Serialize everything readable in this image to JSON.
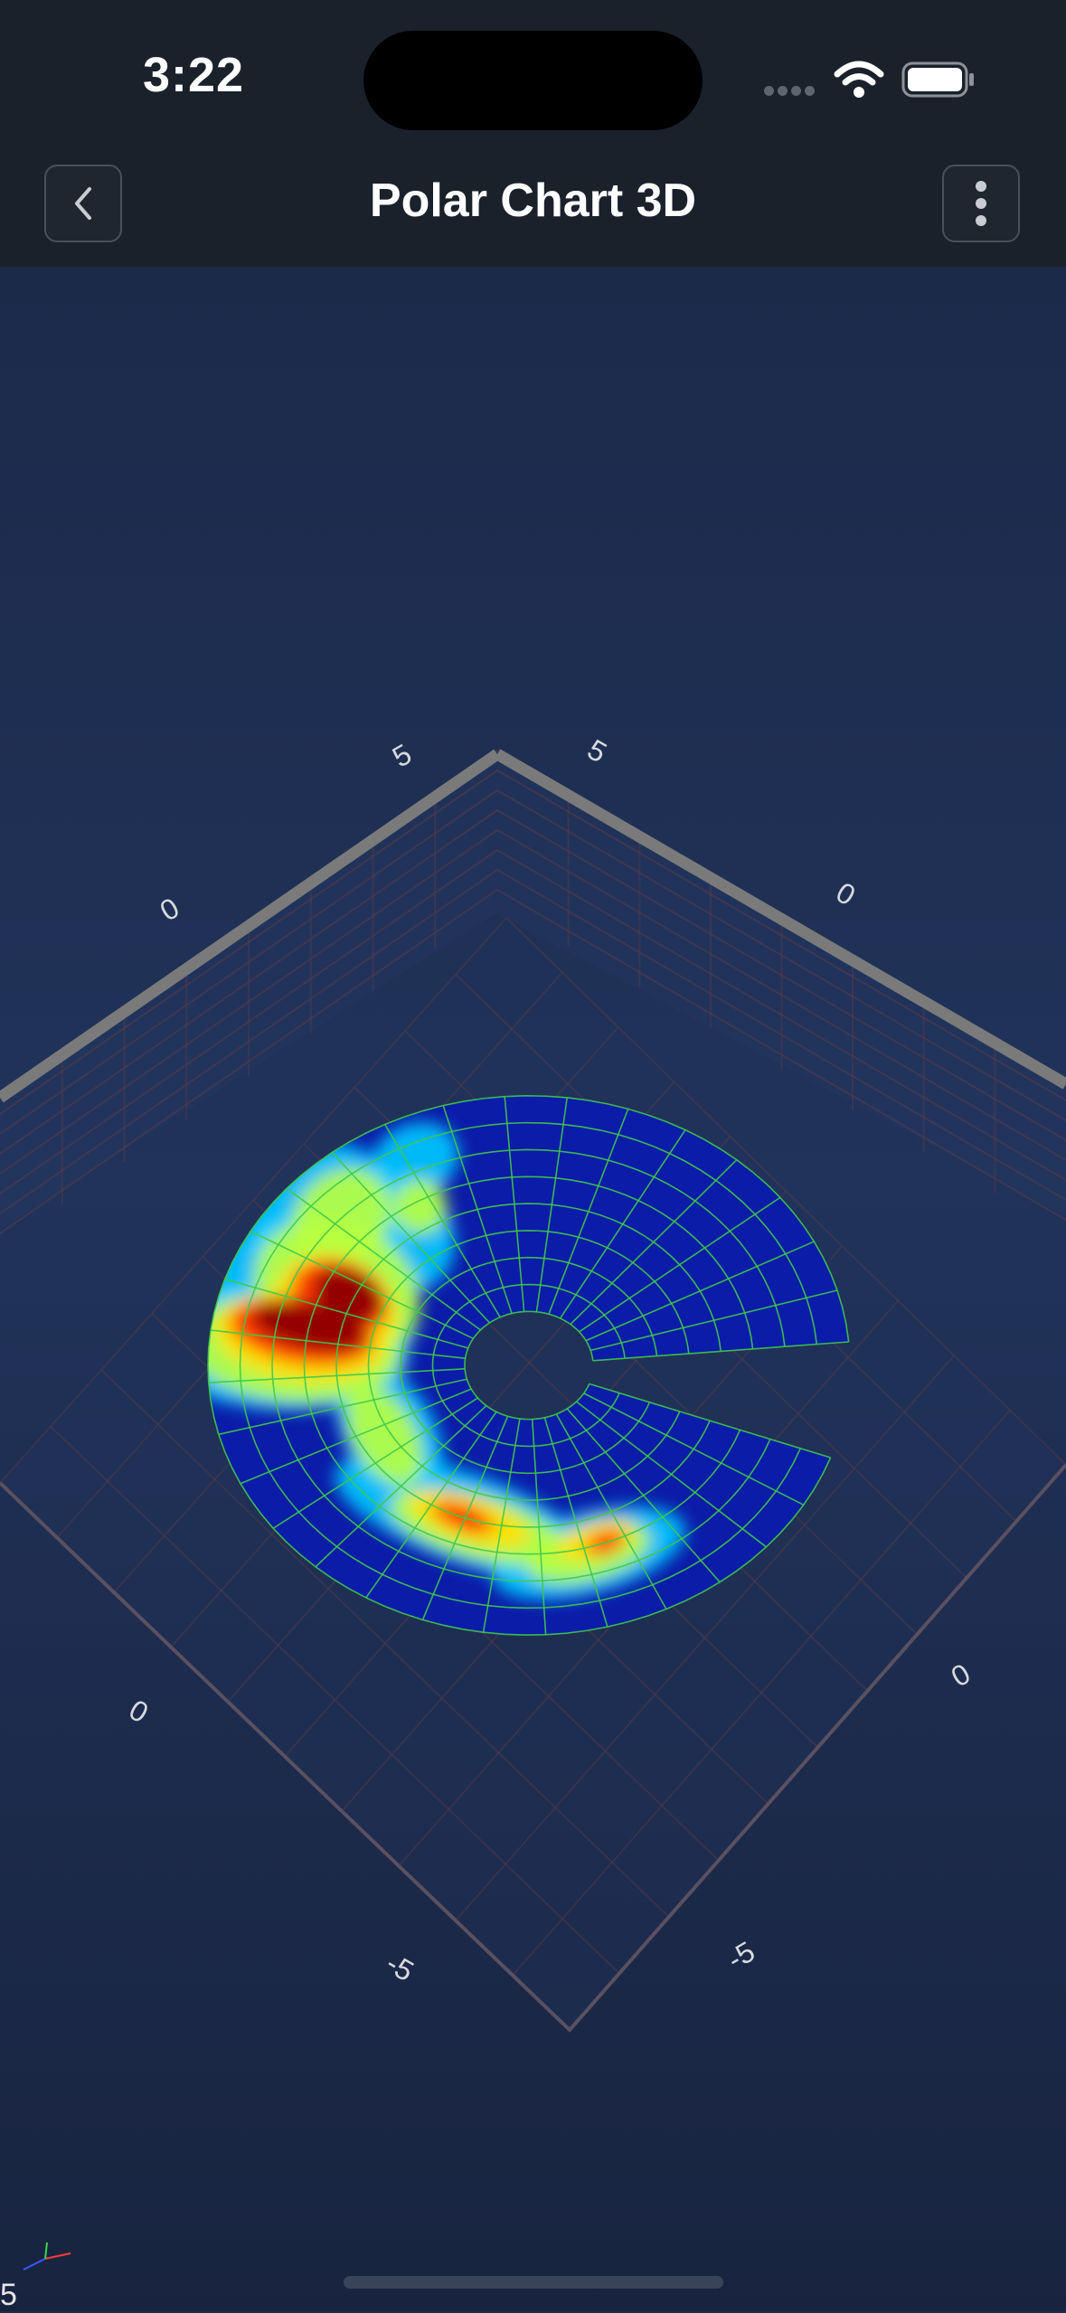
{
  "status_bar": {
    "time": "3:22",
    "icons": [
      "signal-dots-icon",
      "wifi-icon",
      "battery-icon"
    ]
  },
  "nav": {
    "title": "Polar Chart 3D",
    "back_icon": "chevron-left-icon",
    "menu_icon": "more-vertical-icon"
  },
  "chart_data": {
    "type": "heatmap",
    "title": "",
    "projection": "3d-perspective",
    "axis_tick_labels": {
      "back_left": [
        "5",
        "0"
      ],
      "back_right": [
        "5",
        "0"
      ],
      "front_left": [
        "0",
        "-5"
      ],
      "front_right": [
        "0",
        "-5"
      ]
    },
    "polar_surface": {
      "inner_radius": 1,
      "outer_radius": 5,
      "angle_start_deg": 20,
      "angle_end_deg": 355,
      "radial_segments": 8,
      "angular_segments": 30,
      "mesh_color": "#3fc94c"
    },
    "colormap": [
      "#0b1ca8",
      "#0047ff",
      "#00c8ff",
      "#b8ff40",
      "#ffe000",
      "#ff3000",
      "#8b0000"
    ],
    "wall_color": "#7a7a7a",
    "grid_color": "#5a3a4a"
  },
  "corner_label": "5"
}
